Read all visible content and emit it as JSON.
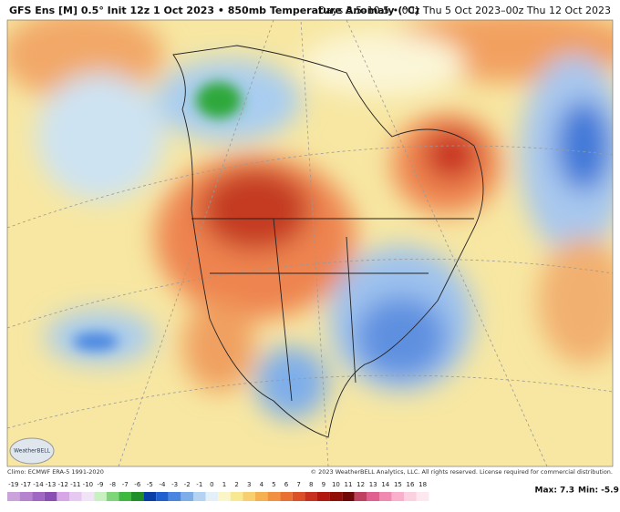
{
  "header": {
    "title": "GFS Ens [M] 0.5° Init 12z 1 Oct 2023 • 850mb Temperature Anomaly (°C)",
    "period": "Days 3.5–10.5 • 00z Thu 5 Oct 2023–00z Thu 12 Oct 2023"
  },
  "map": {
    "logo": "WeatherBELL"
  },
  "footer": {
    "climo": "Climo: ECMWF ERA-5 1991-2020",
    "copyright": "© 2023 WeatherBELL Analytics, LLC. All rights reserved. License required for commercial distribution."
  },
  "colorbar": {
    "labels": [
      -19,
      -17,
      -14,
      -13,
      -12,
      -11,
      -10,
      -9,
      -8,
      -7,
      -6,
      -5,
      -4,
      -3,
      -2,
      -1,
      0,
      1,
      2,
      3,
      4,
      5,
      6,
      7,
      8,
      9,
      10,
      11,
      12,
      13,
      14,
      15,
      16,
      18
    ],
    "colors": [
      "#c9a3d9",
      "#b683cf",
      "#a068c2",
      "#8a4fb3",
      "#d6a6e6",
      "#e6c8f0",
      "#f2e4f7",
      "#c8f0c0",
      "#7fd67a",
      "#3fb83f",
      "#1f8f2a",
      "#0a3fa8",
      "#1f5fd0",
      "#4a86e0",
      "#7eaeea",
      "#b4d2f2",
      "#e4f0f8",
      "#fbf6c8",
      "#f8e890",
      "#f7cf6e",
      "#f5b050",
      "#f09040",
      "#e87030",
      "#dc5028",
      "#c83020",
      "#b01810",
      "#901008",
      "#700808",
      "#c04060",
      "#e06090",
      "#f08ab0",
      "#f8b0cc",
      "#fbd0e0",
      "#fde8f0"
    ]
  },
  "stats": {
    "max": "Max: 7.3",
    "min": "Min: -5.9"
  }
}
